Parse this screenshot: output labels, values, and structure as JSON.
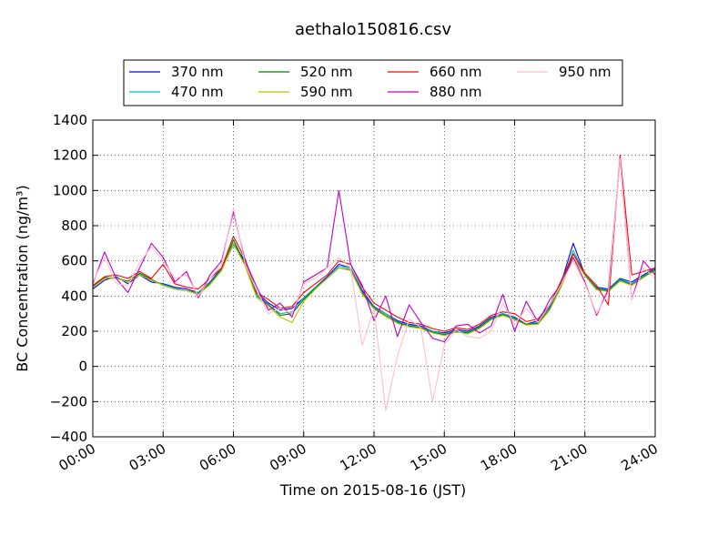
{
  "chart_data": {
    "type": "line",
    "title": "aethalo150816.csv",
    "xlabel": "Time on 2015-08-16 (JST)",
    "ylabel": "BC Concentration (ng/m³)",
    "xlim": [
      0,
      24
    ],
    "ylim": [
      -400,
      1400
    ],
    "x_ticks": [
      {
        "value": 0,
        "label": "00:00"
      },
      {
        "value": 3,
        "label": "03:00"
      },
      {
        "value": 6,
        "label": "06:00"
      },
      {
        "value": 9,
        "label": "09:00"
      },
      {
        "value": 12,
        "label": "12:00"
      },
      {
        "value": 15,
        "label": "15:00"
      },
      {
        "value": 18,
        "label": "18:00"
      },
      {
        "value": 21,
        "label": "21:00"
      },
      {
        "value": 24,
        "label": "24:00"
      }
    ],
    "y_ticks": [
      -400,
      -200,
      0,
      200,
      400,
      600,
      800,
      1000,
      1200,
      1400
    ],
    "grid": true,
    "legend_position": "top",
    "x_hours": [
      0,
      0.5,
      1,
      1.5,
      2,
      2.5,
      3,
      3.5,
      4,
      4.5,
      5,
      5.5,
      6,
      6.5,
      7,
      7.5,
      8,
      8.5,
      9,
      9.5,
      10,
      10.5,
      11,
      11.5,
      12,
      12.5,
      13,
      13.5,
      14,
      14.5,
      15,
      15.5,
      16,
      16.5,
      17,
      17.5,
      18,
      18.5,
      19,
      19.5,
      20,
      20.5,
      21,
      21.5,
      22,
      22.5,
      23,
      23.5,
      24
    ],
    "series": [
      {
        "name": "370 nm",
        "color": "#0000ff",
        "values": [
          440,
          490,
          510,
          470,
          520,
          480,
          470,
          450,
          440,
          420,
          480,
          560,
          700,
          600,
          420,
          360,
          320,
          330,
          390,
          450,
          510,
          580,
          560,
          430,
          340,
          300,
          260,
          240,
          230,
          200,
          190,
          210,
          200,
          230,
          280,
          300,
          280,
          240,
          260,
          340,
          480,
          700,
          520,
          450,
          440,
          500,
          480,
          520,
          560
        ]
      },
      {
        "name": "470 nm",
        "color": "#00bfbf",
        "values": [
          450,
          500,
          505,
          480,
          525,
          490,
          465,
          445,
          430,
          420,
          475,
          555,
          690,
          590,
          410,
          350,
          300,
          310,
          390,
          450,
          500,
          570,
          560,
          420,
          335,
          300,
          255,
          235,
          225,
          200,
          185,
          205,
          195,
          225,
          275,
          300,
          275,
          240,
          250,
          330,
          470,
          660,
          520,
          445,
          435,
          495,
          470,
          515,
          555
        ]
      },
      {
        "name": "520 nm",
        "color": "#008000",
        "values": [
          455,
          505,
          500,
          485,
          530,
          495,
          460,
          440,
          430,
          415,
          470,
          550,
          720,
          580,
          400,
          350,
          290,
          300,
          380,
          445,
          500,
          560,
          550,
          415,
          330,
          290,
          250,
          230,
          220,
          195,
          180,
          200,
          190,
          220,
          270,
          295,
          270,
          240,
          245,
          325,
          460,
          640,
          520,
          440,
          430,
          490,
          465,
          510,
          550
        ]
      },
      {
        "name": "590 nm",
        "color": "#bfbf00",
        "values": [
          450,
          500,
          500,
          480,
          520,
          490,
          460,
          440,
          430,
          410,
          465,
          545,
          700,
          570,
          390,
          340,
          280,
          250,
          370,
          440,
          500,
          560,
          545,
          410,
          325,
          285,
          245,
          225,
          215,
          190,
          175,
          195,
          185,
          215,
          265,
          290,
          265,
          235,
          240,
          320,
          455,
          620,
          515,
          435,
          425,
          485,
          460,
          505,
          545
        ]
      },
      {
        "name": "660 nm",
        "color": "#ff0000",
        "values": [
          460,
          510,
          520,
          500,
          540,
          500,
          580,
          470,
          450,
          440,
          500,
          560,
          740,
          610,
          420,
          380,
          330,
          340,
          420,
          470,
          520,
          600,
          580,
          450,
          360,
          320,
          280,
          250,
          240,
          215,
          200,
          220,
          210,
          240,
          290,
          310,
          300,
          255,
          270,
          350,
          490,
          640,
          530,
          460,
          350,
          1200,
          520,
          540,
          560
        ]
      },
      {
        "name": "880 nm",
        "color": "#bf00bf",
        "values": [
          470,
          650,
          500,
          420,
          560,
          700,
          620,
          480,
          540,
          390,
          520,
          600,
          880,
          600,
          450,
          320,
          360,
          280,
          480,
          520,
          560,
          1000,
          580,
          460,
          260,
          400,
          170,
          350,
          250,
          160,
          140,
          230,
          240,
          190,
          230,
          410,
          200,
          370,
          250,
          380,
          470,
          620,
          480,
          290,
          440,
          1180,
          380,
          600,
          520
        ]
      },
      {
        "name": "950 nm",
        "color": "#ffc0cb",
        "values": [
          480,
          620,
          470,
          460,
          590,
          680,
          600,
          500,
          520,
          400,
          500,
          580,
          900,
          580,
          430,
          300,
          330,
          300,
          470,
          500,
          560,
          620,
          560,
          120,
          330,
          -250,
          60,
          270,
          220,
          -200,
          120,
          210,
          170,
          160,
          200,
          360,
          240,
          330,
          250,
          350,
          470,
          600,
          470,
          300,
          420,
          1180,
          380,
          560,
          500
        ]
      }
    ]
  }
}
